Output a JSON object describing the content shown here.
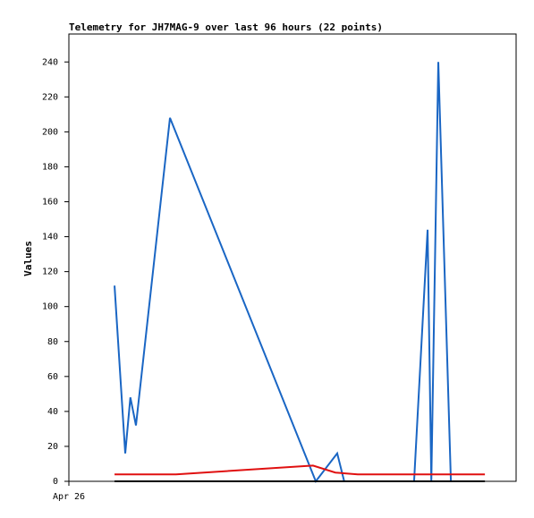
{
  "chart_data": {
    "type": "line",
    "title": "Telemetry for JH7MAG-9 over last 96 hours (22 points)",
    "ylabel": "Values",
    "xlim": [
      0,
      96
    ],
    "xticks": [
      {
        "value": 0,
        "label": "Apr 26"
      }
    ],
    "ylim": [
      0,
      256
    ],
    "yticks": [
      0,
      20,
      40,
      60,
      80,
      100,
      120,
      140,
      160,
      180,
      200,
      220,
      240
    ],
    "grid": false,
    "series": [
      {
        "color": "#1a66c4",
        "x": [
          9.8,
          12.1,
          13.2,
          14.4,
          21.7,
          53,
          57.6,
          59.1,
          74.1,
          77,
          77.8,
          79.3,
          82
        ],
        "values": [
          112,
          16,
          48,
          32,
          208,
          0,
          16,
          0,
          0,
          144,
          0,
          240,
          0
        ]
      },
      {
        "color": "#e01010",
        "x": [
          9.8,
          23,
          52.4,
          57.2,
          62,
          89.3
        ],
        "values": [
          4,
          4,
          9,
          5,
          4,
          4
        ]
      },
      {
        "color": "#000000",
        "x": [
          9.8,
          89.3
        ],
        "values": [
          0,
          0
        ]
      }
    ]
  }
}
